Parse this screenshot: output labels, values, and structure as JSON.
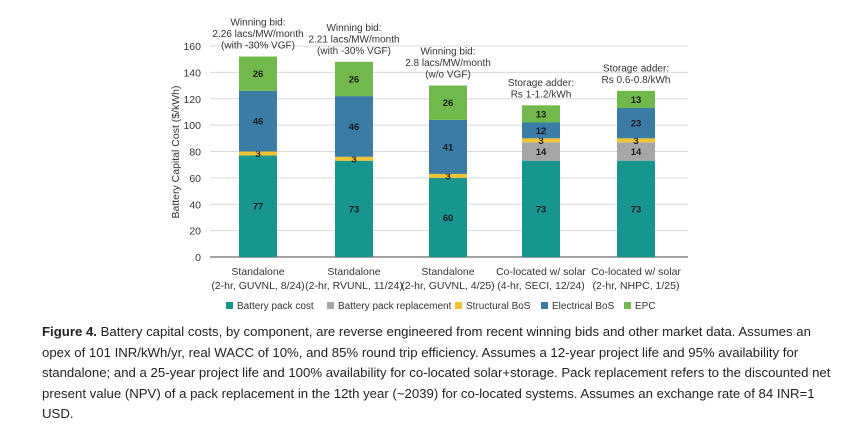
{
  "chart_data": {
    "type": "bar",
    "stacked": true,
    "ylabel": "Battery Capital Cost ($/kWh)",
    "ylim": [
      0,
      160
    ],
    "yticks": [
      0,
      20,
      40,
      60,
      80,
      100,
      120,
      140,
      160
    ],
    "categories": [
      {
        "line1": "Standalone",
        "line2": "(2-hr, GUVNL, 8/24)"
      },
      {
        "line1": "Standalone",
        "line2": "(2-hr, RVUNL, 11/24)"
      },
      {
        "line1": "Standalone",
        "line2": "(2-hr, GUVNL, 4/25)"
      },
      {
        "line1": "Co-located w/ solar",
        "line2": "(4-hr, SECI, 12/24)"
      },
      {
        "line1": "Co-located w/ solar",
        "line2": "(2-hr, NHPC, 1/25)"
      }
    ],
    "series": [
      {
        "name": "Battery pack cost",
        "color": "#17968f",
        "label_color": "#1a1a1a",
        "values": [
          77,
          73,
          60,
          73,
          73
        ]
      },
      {
        "name": "Battery pack replacement",
        "color": "#a6a6a6",
        "label_color": "#1a1a1a",
        "values": [
          0,
          0,
          0,
          14,
          14
        ]
      },
      {
        "name": "Structural BoS",
        "color": "#f2c230",
        "label_color": "#1a1a1a",
        "values": [
          3,
          3,
          3,
          3,
          3
        ]
      },
      {
        "name": "Electrical BoS",
        "color": "#3a7ca5",
        "label_color": "#1a1a1a",
        "values": [
          46,
          46,
          41,
          12,
          23
        ]
      },
      {
        "name": "EPC",
        "color": "#71b94b",
        "label_color": "#1a1a1a",
        "values": [
          26,
          26,
          26,
          13,
          13
        ]
      }
    ],
    "annotations": [
      [
        "Winning bid:",
        "2.26 lacs/MW/month",
        "(with -30% VGF)"
      ],
      [
        "Winning bid:",
        "2.21 lacs/MW/month",
        "(with -30% VGF)"
      ],
      [
        "Winning bid:",
        "2.8 lacs/MW/month",
        "(w/o VGF)"
      ],
      [
        "Storage adder:",
        "Rs 1-1.2/kWh"
      ],
      [
        "Storage adder:",
        "Rs 0.6-0.8/kWh"
      ]
    ],
    "grid": true,
    "legend_position": "bottom"
  },
  "caption": {
    "label": "Figure 4.",
    "text": " Battery capital costs, by component, are reverse engineered from recent winning bids and other market data. Assumes an opex of 101 INR/kWh/yr, real WACC of 10%, and 85% round trip efficiency. Assumes a 12-year project life and 95% availability for standalone; and a 25-year project life and 100% availability for co-located solar+storage. Pack replacement refers to the discounted net present value (NPV) of a pack replacement in the 12th year (~2039) for co-located systems. Assumes an exchange rate of 84 INR=1 USD."
  }
}
